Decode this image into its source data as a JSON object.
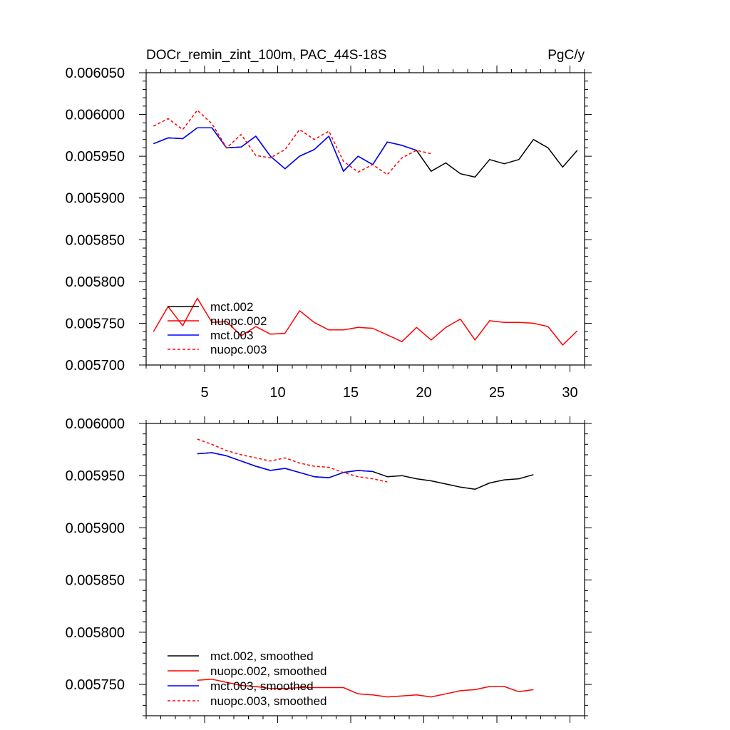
{
  "chart_data": [
    {
      "type": "line",
      "title": "DOCr_remin_zint_100m, PAC_44S-18S",
      "units": "PgC/y",
      "xlim": [
        1,
        31
      ],
      "ylim": [
        0.0057,
        0.00605
      ],
      "yticks": [
        "0.005700",
        "0.005750",
        "0.005800",
        "0.005850",
        "0.005900",
        "0.005950",
        "0.006000",
        "0.006050"
      ],
      "xticks": [
        "5",
        "10",
        "15",
        "20",
        "25",
        "30"
      ],
      "legend_position": "lower-left",
      "series": [
        {
          "name": "mct.002",
          "color": "#000000",
          "dash": "solid",
          "x": [
            1.5,
            2.5,
            3.5,
            4.5,
            5.5,
            6.5,
            7.5,
            8.5,
            9.5,
            10.5,
            11.5,
            12.5,
            13.5,
            14.5,
            15.5,
            16.5,
            17.5,
            18.5,
            19.5,
            20.5,
            21.5,
            22.5,
            23.5,
            24.5,
            25.5,
            26.5,
            27.5,
            28.5,
            29.5,
            30.5
          ],
          "y": [
            0.005965,
            0.005972,
            0.005971,
            0.005984,
            0.005984,
            0.00596,
            0.005961,
            0.005974,
            0.00595,
            0.005935,
            0.00595,
            0.005958,
            0.005974,
            0.005932,
            0.00595,
            0.00594,
            0.005967,
            0.005963,
            0.005957,
            0.005932,
            0.005942,
            0.005929,
            0.005925,
            0.005946,
            0.005941,
            0.005946,
            0.00597,
            0.00596,
            0.005937,
            0.005957
          ]
        },
        {
          "name": "nuopc.002",
          "color": "#ff0000",
          "dash": "solid",
          "x": [
            1.5,
            2.5,
            3.5,
            4.5,
            5.5,
            6.5,
            7.5,
            8.5,
            9.5,
            10.5,
            11.5,
            12.5,
            13.5,
            14.5,
            15.5,
            16.5,
            17.5,
            18.5,
            19.5,
            20.5,
            21.5,
            22.5,
            23.5,
            24.5,
            25.5,
            26.5,
            27.5,
            28.5,
            29.5,
            30.5
          ],
          "y": [
            0.00574,
            0.00577,
            0.005747,
            0.00578,
            0.005751,
            0.005752,
            0.005735,
            0.005746,
            0.005737,
            0.005738,
            0.005765,
            0.005751,
            0.005742,
            0.005742,
            0.005745,
            0.005744,
            0.005736,
            0.005728,
            0.005745,
            0.00573,
            0.005745,
            0.005755,
            0.00573,
            0.005753,
            0.005751,
            0.005751,
            0.00575,
            0.005746,
            0.005724,
            0.005741
          ]
        },
        {
          "name": "mct.003",
          "color": "#0000ff",
          "dash": "solid",
          "x": [
            1.5,
            2.5,
            3.5,
            4.5,
            5.5,
            6.5,
            7.5,
            8.5,
            9.5,
            10.5,
            11.5,
            12.5,
            13.5,
            14.5,
            15.5,
            16.5,
            17.5,
            18.5,
            19.5
          ],
          "y": [
            0.005965,
            0.005972,
            0.005971,
            0.005984,
            0.005984,
            0.00596,
            0.005961,
            0.005974,
            0.00595,
            0.005935,
            0.00595,
            0.005958,
            0.005974,
            0.005932,
            0.00595,
            0.00594,
            0.005967,
            0.005963,
            0.005957
          ]
        },
        {
          "name": "nuopc.003",
          "color": "#ff0000",
          "dash": "dashed",
          "x": [
            1.5,
            2.5,
            3.5,
            4.5,
            5.5,
            6.5,
            7.5,
            8.5,
            9.5,
            10.5,
            11.5,
            12.5,
            13.5,
            14.5,
            15.5,
            16.5,
            17.5,
            18.5,
            19.5,
            20.5
          ],
          "y": [
            0.005986,
            0.005995,
            0.005982,
            0.006005,
            0.005989,
            0.00596,
            0.005976,
            0.005951,
            0.005948,
            0.005958,
            0.005982,
            0.00597,
            0.00598,
            0.005944,
            0.005931,
            0.00594,
            0.005928,
            0.005948,
            0.005957,
            0.005953
          ]
        }
      ]
    },
    {
      "type": "line",
      "xlim": [
        1,
        31
      ],
      "ylim": [
        0.00572,
        0.006
      ],
      "yticks": [
        "0.005750",
        "0.005800",
        "0.005850",
        "0.005900",
        "0.005950",
        "0.006000"
      ],
      "legend_position": "lower-left",
      "series": [
        {
          "name": "mct.002, smoothed",
          "color": "#000000",
          "dash": "solid",
          "x": [
            4.5,
            5.5,
            6.5,
            7.5,
            8.5,
            9.5,
            10.5,
            11.5,
            12.5,
            13.5,
            14.5,
            15.5,
            16.5,
            17.5,
            18.5,
            19.5,
            20.5,
            21.5,
            22.5,
            23.5,
            24.5,
            25.5,
            26.5,
            27.5
          ],
          "y": [
            0.005971,
            0.005972,
            0.005969,
            0.005964,
            0.005959,
            0.005955,
            0.005957,
            0.005953,
            0.005949,
            0.005948,
            0.005953,
            0.005955,
            0.005954,
            0.005949,
            0.00595,
            0.005947,
            0.005945,
            0.005942,
            0.005939,
            0.005937,
            0.005943,
            0.005946,
            0.005947,
            0.005951
          ]
        },
        {
          "name": "nuopc.002, smoothed",
          "color": "#ff0000",
          "dash": "solid",
          "x": [
            4.5,
            5.5,
            6.5,
            7.5,
            8.5,
            9.5,
            10.5,
            11.5,
            12.5,
            13.5,
            14.5,
            15.5,
            16.5,
            17.5,
            18.5,
            19.5,
            20.5,
            21.5,
            22.5,
            23.5,
            24.5,
            25.5,
            26.5,
            27.5
          ],
          "y": [
            0.005754,
            0.005755,
            0.005752,
            0.005749,
            0.005748,
            0.005746,
            0.005746,
            0.005747,
            0.005747,
            0.005747,
            0.005747,
            0.005741,
            0.00574,
            0.005738,
            0.005739,
            0.00574,
            0.005738,
            0.005741,
            0.005744,
            0.005745,
            0.005748,
            0.005748,
            0.005743,
            0.005745
          ]
        },
        {
          "name": "mct.003, smoothed",
          "color": "#0000ff",
          "dash": "solid",
          "x": [
            4.5,
            5.5,
            6.5,
            7.5,
            8.5,
            9.5,
            10.5,
            11.5,
            12.5,
            13.5,
            14.5,
            15.5,
            16.5
          ],
          "y": [
            0.005971,
            0.005972,
            0.005969,
            0.005964,
            0.005959,
            0.005955,
            0.005957,
            0.005953,
            0.005949,
            0.005948,
            0.005953,
            0.005955,
            0.005954
          ]
        },
        {
          "name": "nuopc.003, smoothed",
          "color": "#ff0000",
          "dash": "dashed",
          "x": [
            4.5,
            5.5,
            6.5,
            7.5,
            8.5,
            9.5,
            10.5,
            11.5,
            12.5,
            13.5,
            14.5,
            15.5,
            16.5,
            17.5
          ],
          "y": [
            0.005985,
            0.00598,
            0.005974,
            0.00597,
            0.005967,
            0.005964,
            0.005967,
            0.005962,
            0.005959,
            0.005958,
            0.005953,
            0.005949,
            0.005947,
            0.005944
          ]
        }
      ]
    }
  ]
}
